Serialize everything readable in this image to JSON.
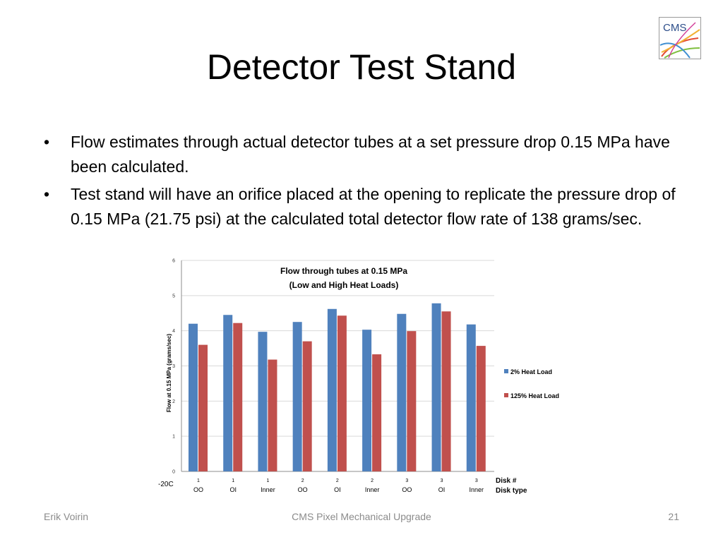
{
  "slide": {
    "title": "Detector Test Stand",
    "logo_text": "CMS",
    "bullets": [
      "Flow estimates through actual detector tubes at a set pressure drop 0.15 MPa have been calculated.",
      "Test stand will have an orifice placed at the opening to replicate the pressure drop of 0.15 MPa (21.75 psi) at the calculated total detector flow rate of 138 grams/sec."
    ],
    "bullet_glyph": "•"
  },
  "footer": {
    "author": "Erik Voirin",
    "center": "CMS Pixel Mechanical Upgrade",
    "page": "21"
  },
  "chart_data": {
    "type": "bar",
    "title": "Flow through tubes at 0.15 MPa",
    "subtitle": "(Low and High Heat Loads)",
    "ylabel": "Flow at 0.15 MPa (grams/sec)",
    "ylim": [
      0,
      6
    ],
    "yticks": [
      0,
      1,
      2,
      3,
      4,
      5,
      6
    ],
    "grid": true,
    "legend_position": "right",
    "corner_label": "-20C",
    "row_labels": [
      "Disk #",
      "Disk type"
    ],
    "categories": [
      {
        "disk": "1",
        "type": "OO"
      },
      {
        "disk": "1",
        "type": "OI"
      },
      {
        "disk": "1",
        "type": "Inner"
      },
      {
        "disk": "2",
        "type": "OO"
      },
      {
        "disk": "2",
        "type": "OI"
      },
      {
        "disk": "2",
        "type": "Inner"
      },
      {
        "disk": "3",
        "type": "OO"
      },
      {
        "disk": "3",
        "type": "OI"
      },
      {
        "disk": "3",
        "type": "Inner"
      }
    ],
    "series": [
      {
        "name": "2% Heat Load",
        "color": "#4f81bd",
        "values": [
          4.2,
          4.45,
          3.97,
          4.25,
          4.62,
          4.03,
          4.48,
          4.78,
          4.18
        ]
      },
      {
        "name": "125% Heat Load",
        "color": "#c0504d",
        "values": [
          3.6,
          4.22,
          3.18,
          3.7,
          4.43,
          3.33,
          3.99,
          4.55,
          3.57
        ]
      }
    ]
  }
}
